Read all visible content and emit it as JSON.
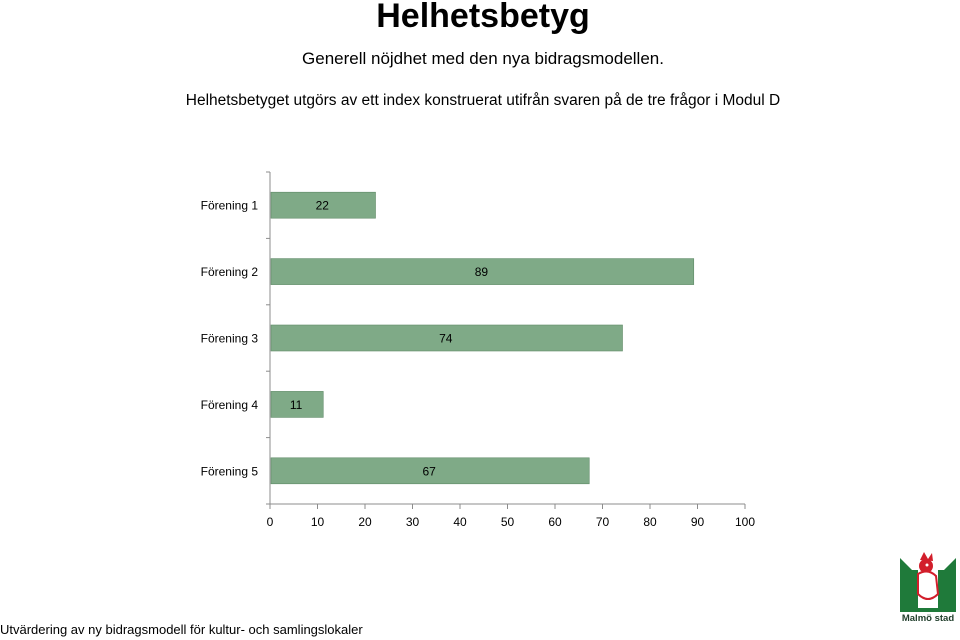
{
  "chart_data": {
    "type": "bar",
    "orientation": "horizontal",
    "title": "Helhetsbetyg",
    "subtitle": "Generell nöjdhet med den nya bidragsmodellen.",
    "description": "Helhetsbetyget utgörs av ett index konstruerat utifrån svaren på de tre frågor i Modul D",
    "categories": [
      "Förening 1",
      "Förening 2",
      "Förening 3",
      "Förening 4",
      "Förening 5"
    ],
    "values": [
      22,
      89,
      74,
      11,
      67
    ],
    "xlim": [
      0,
      100
    ],
    "xticks": [
      0,
      10,
      20,
      30,
      40,
      50,
      60,
      70,
      80,
      90,
      100
    ],
    "xlabel": "",
    "ylabel": "",
    "grid": false,
    "legend": "none",
    "bar_color": "#7faa87",
    "bar_border_color": "#5f8a67"
  },
  "footer": "Utvärdering av ny bidragsmodell för kultur- och samlingslokaler",
  "logo": {
    "name": "malmo-stad-logo",
    "text": "Malmö stad",
    "colors": {
      "green": "#1f7a3a",
      "red": "#d21e2b"
    }
  }
}
